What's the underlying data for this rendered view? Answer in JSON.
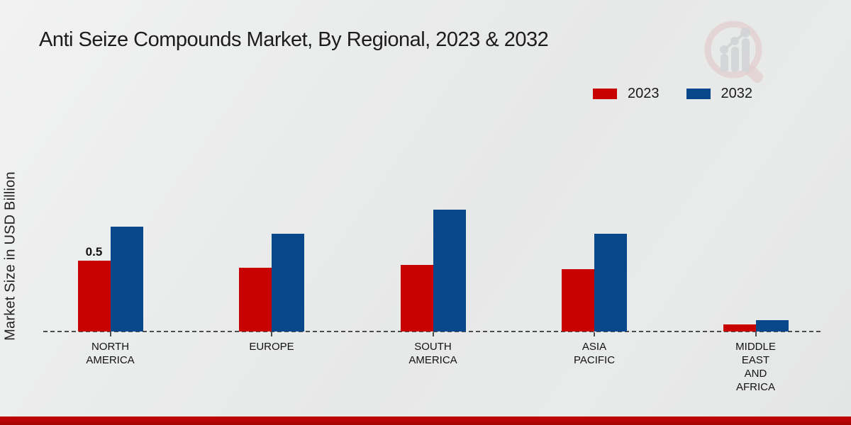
{
  "title": "Anti Seize Compounds Market, By Regional, 2023 & 2032",
  "ylabel": "Market Size in USD Billion",
  "legend": {
    "items": [
      {
        "label": "2023",
        "color": "#c80101"
      },
      {
        "label": "2032",
        "color": "#07478a"
      }
    ],
    "position": "top-right"
  },
  "colors": {
    "bar_2023": "#c80101",
    "bar_2032": "#07478a",
    "footer_accent": "#b30404",
    "axis": "#4d4d4d",
    "background": "#e9eaea",
    "text": "#1a1a1a"
  },
  "watermark": "magnifier-bar-chart-logo",
  "chart_data": {
    "type": "bar",
    "categories": [
      "NORTH AMERICA",
      "EUROPE",
      "SOUTH AMERICA",
      "ASIA PACIFIC",
      "MIDDLE EAST AND AFRICA"
    ],
    "category_label_lines": [
      [
        "NORTH",
        "AMERICA"
      ],
      [
        "EUROPE"
      ],
      [
        "SOUTH",
        "AMERICA"
      ],
      [
        "ASIA",
        "PACIFIC"
      ],
      [
        "MIDDLE",
        "EAST",
        "AND",
        "AFRICA"
      ]
    ],
    "series": [
      {
        "name": "2023",
        "color": "#c80101",
        "values": [
          0.5,
          0.45,
          0.47,
          0.44,
          0.05
        ]
      },
      {
        "name": "2032",
        "color": "#07478a",
        "values": [
          0.74,
          0.69,
          0.86,
          0.69,
          0.08
        ]
      }
    ],
    "bar_labels": [
      {
        "series": "2023",
        "category_index": 0,
        "text": "0.5"
      }
    ],
    "title": "Anti Seize Compounds Market, By Regional, 2023 & 2032",
    "xlabel": "",
    "ylabel": "Market Size in USD Billion",
    "ylim": [
      0,
      1.0
    ],
    "grid": false,
    "y_axis_ticks_visible": false,
    "baseline_style": "dashed",
    "legend_position": "top-right"
  }
}
